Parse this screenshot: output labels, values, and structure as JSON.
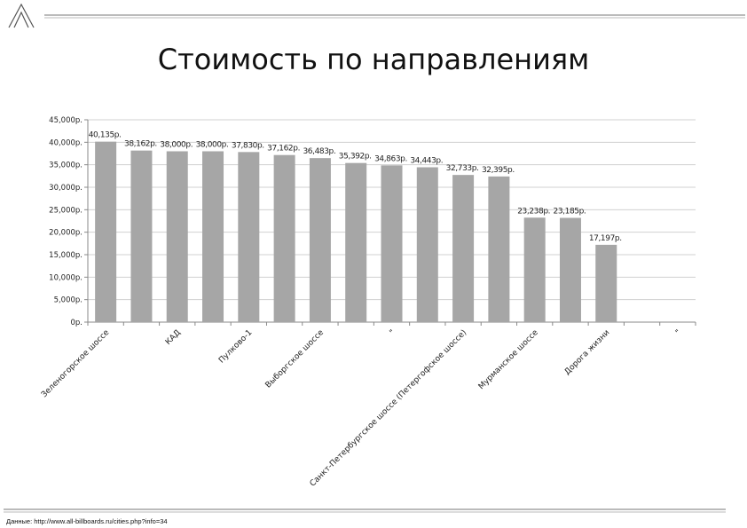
{
  "slide": {
    "title": "Стоимость по направлениям",
    "source": "Данные: http://www.all-billboards.ru/cities.php?info=34"
  },
  "chart_data": {
    "type": "bar",
    "title": "",
    "xlabel": "",
    "ylabel": "",
    "ylim": [
      0,
      45000
    ],
    "y_ticks": [
      "0р.",
      "5,000р.",
      "10,000р.",
      "15,000р.",
      "20,000р.",
      "25,000р.",
      "30,000р.",
      "35,000р.",
      "40,000р.",
      "45,000р."
    ],
    "grid": true,
    "bar_color": "#a6a6a6",
    "categories": [
      "Зеленогорское шоссе",
      "",
      "КАД",
      "",
      "Пулково-1",
      "",
      "Выборгское шоссе",
      "",
      "\"",
      "",
      "Санкт-Петербургское шоссе (Петергофское шоссе)",
      "",
      "Мурманское шоссе",
      "",
      "Дорога жизни",
      "",
      "\""
    ],
    "values": [
      40135,
      38162,
      38000,
      38000,
      37830,
      37162,
      36483,
      35392,
      34863,
      34443,
      32733,
      32395,
      23238,
      23185,
      17197,
      null,
      null
    ],
    "data_labels": [
      "40,135р.",
      "38,162р.",
      "38,000р.",
      "38,000р.",
      "37,830р.",
      "37,162р.",
      "36,483р.",
      "35,392р.",
      "34,863р.",
      "34,443р.",
      "32,733р.",
      "32,395р.",
      "23,238р.",
      "23,185р.",
      "17,197р.",
      "",
      ""
    ]
  }
}
